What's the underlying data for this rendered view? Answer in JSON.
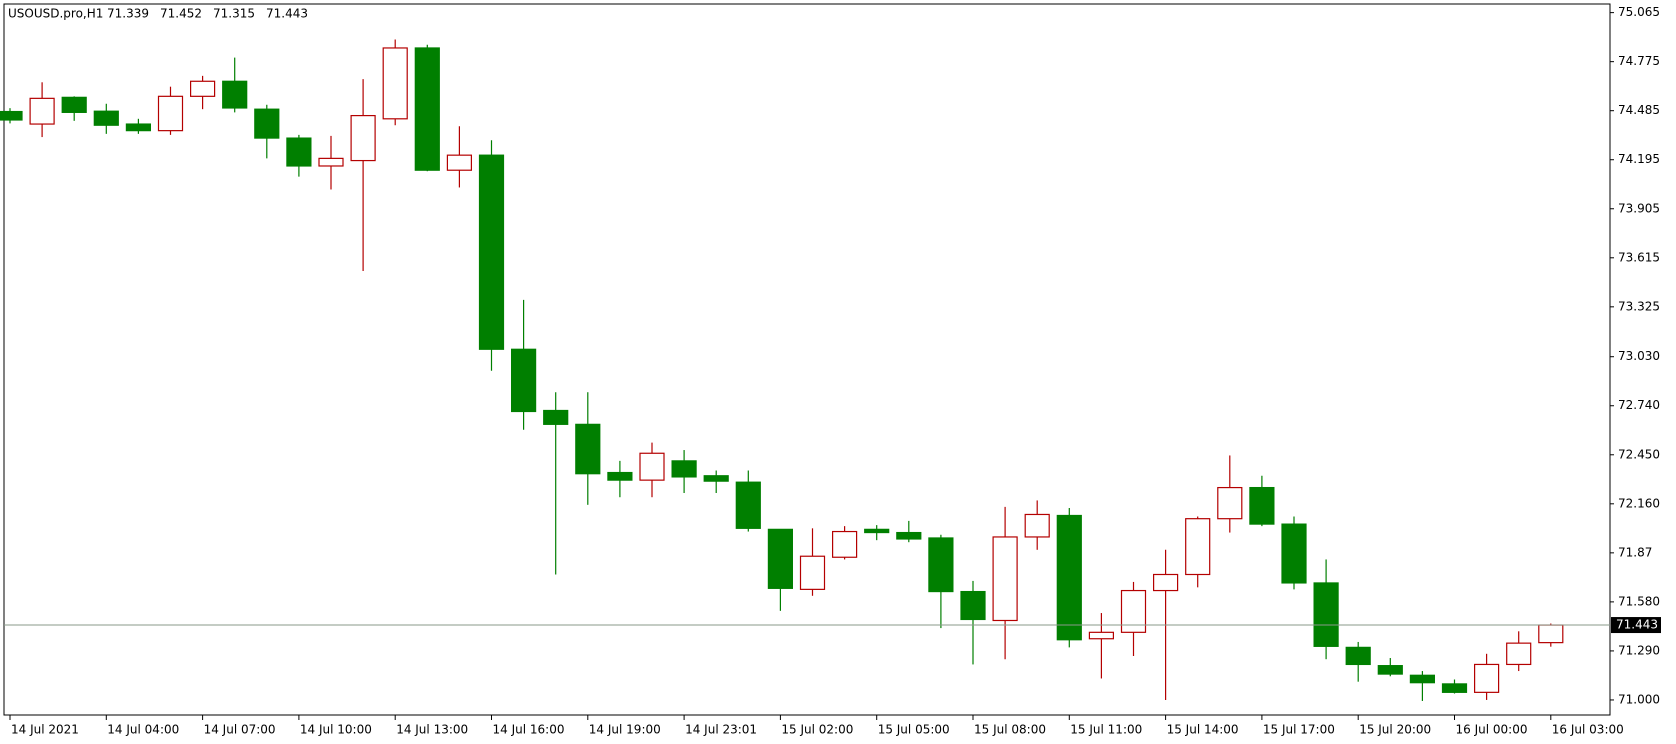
{
  "chart_data": {
    "type": "candlestick",
    "title": "USOUSD.pro,H1",
    "bull_color": "#b40000",
    "bear_color": "#007f00",
    "categories": [
      "14 Jul 2021",
      null,
      null,
      "14 Jul 04:00",
      null,
      null,
      "14 Jul 07:00",
      null,
      null,
      "14 Jul 10:00",
      null,
      null,
      "14 Jul 13:00",
      null,
      null,
      "14 Jul 16:00",
      null,
      null,
      "14 Jul 19:00",
      null,
      null,
      "14 Jul 23:01",
      null,
      null,
      "15 Jul 02:00",
      null,
      null,
      "15 Jul 05:00",
      null,
      null,
      "15 Jul 08:00",
      null,
      null,
      "15 Jul 11:00",
      null,
      null,
      "15 Jul 14:00",
      null,
      null,
      "15 Jul 17:00",
      null,
      null,
      "15 Jul 20:00",
      null,
      null,
      "16 Jul 00:00",
      null,
      null,
      "16 Jul 03:00"
    ],
    "open": [
      74.48,
      74.406,
      74.564,
      74.482,
      74.406,
      74.367,
      74.57,
      74.659,
      74.494,
      74.323,
      74.158,
      74.19,
      74.437,
      74.856,
      74.133,
      74.222,
      73.074,
      72.712,
      72.63,
      72.345,
      72.3,
      72.414,
      72.326,
      72.288,
      72.009,
      71.654,
      71.844,
      72.009,
      71.99,
      71.958,
      71.641,
      71.47,
      71.964,
      72.091,
      71.362,
      71.4,
      71.647,
      71.742,
      72.072,
      72.256,
      72.04,
      71.692,
      71.311,
      71.203,
      71.146,
      71.095,
      71.045,
      71.21,
      71.339
    ],
    "high": [
      74.5,
      74.653,
      74.57,
      74.526,
      74.437,
      74.627,
      74.691,
      74.799,
      74.52,
      74.342,
      74.336,
      74.672,
      74.906,
      74.875,
      74.393,
      74.31,
      73.366,
      72.82,
      72.82,
      72.414,
      72.522,
      72.478,
      72.357,
      72.357,
      72.009,
      72.015,
      72.028,
      72.034,
      72.059,
      71.977,
      71.704,
      72.142,
      72.18,
      72.135,
      71.514,
      71.698,
      71.888,
      72.085,
      72.446,
      72.326,
      72.085,
      71.831,
      71.343,
      71.248,
      71.171,
      71.121,
      71.273,
      71.406,
      71.452
    ],
    "low": [
      74.41,
      74.329,
      74.425,
      74.348,
      74.348,
      74.342,
      74.494,
      74.475,
      74.203,
      74.095,
      74.019,
      73.537,
      74.399,
      74.127,
      74.031,
      72.947,
      72.598,
      71.742,
      72.154,
      72.199,
      72.199,
      72.224,
      72.224,
      71.996,
      71.527,
      71.616,
      71.831,
      71.945,
      71.933,
      71.425,
      71.21,
      71.241,
      71.888,
      71.311,
      71.127,
      71.26,
      71.0,
      71.666,
      71.99,
      72.028,
      71.654,
      71.241,
      71.108,
      71.14,
      70.994,
      71.038,
      71.0,
      71.171,
      71.315
    ],
    "close": [
      74.43,
      74.558,
      74.475,
      74.399,
      74.367,
      74.57,
      74.659,
      74.501,
      74.323,
      74.158,
      74.203,
      74.456,
      74.856,
      74.133,
      74.222,
      73.074,
      72.706,
      72.63,
      72.338,
      72.3,
      72.459,
      72.319,
      72.294,
      72.015,
      71.66,
      71.85,
      71.996,
      71.99,
      71.952,
      71.641,
      71.476,
      71.964,
      72.097,
      71.356,
      71.4,
      71.647,
      71.742,
      72.072,
      72.256,
      72.04,
      71.692,
      71.317,
      71.21,
      71.153,
      71.102,
      71.045,
      71.21,
      71.336,
      71.443
    ],
    "ylim": [
      70.911,
      75.116
    ],
    "yticks": [
      75.065,
      74.775,
      74.485,
      74.195,
      73.905,
      73.615,
      73.325,
      {
        "value": 73.03,
        "label": "73.030"
      },
      {
        "value": 72.74,
        "label": "72.740"
      },
      {
        "value": 72.45,
        "label": "72.450"
      },
      {
        "value": 72.16,
        "label": "72.160"
      },
      71.87,
      {
        "value": 71.58,
        "label": "71.580"
      },
      {
        "value": 71.29,
        "label": "71.290"
      },
      {
        "value": 71.0,
        "label": "71.000"
      }
    ]
  }
}
